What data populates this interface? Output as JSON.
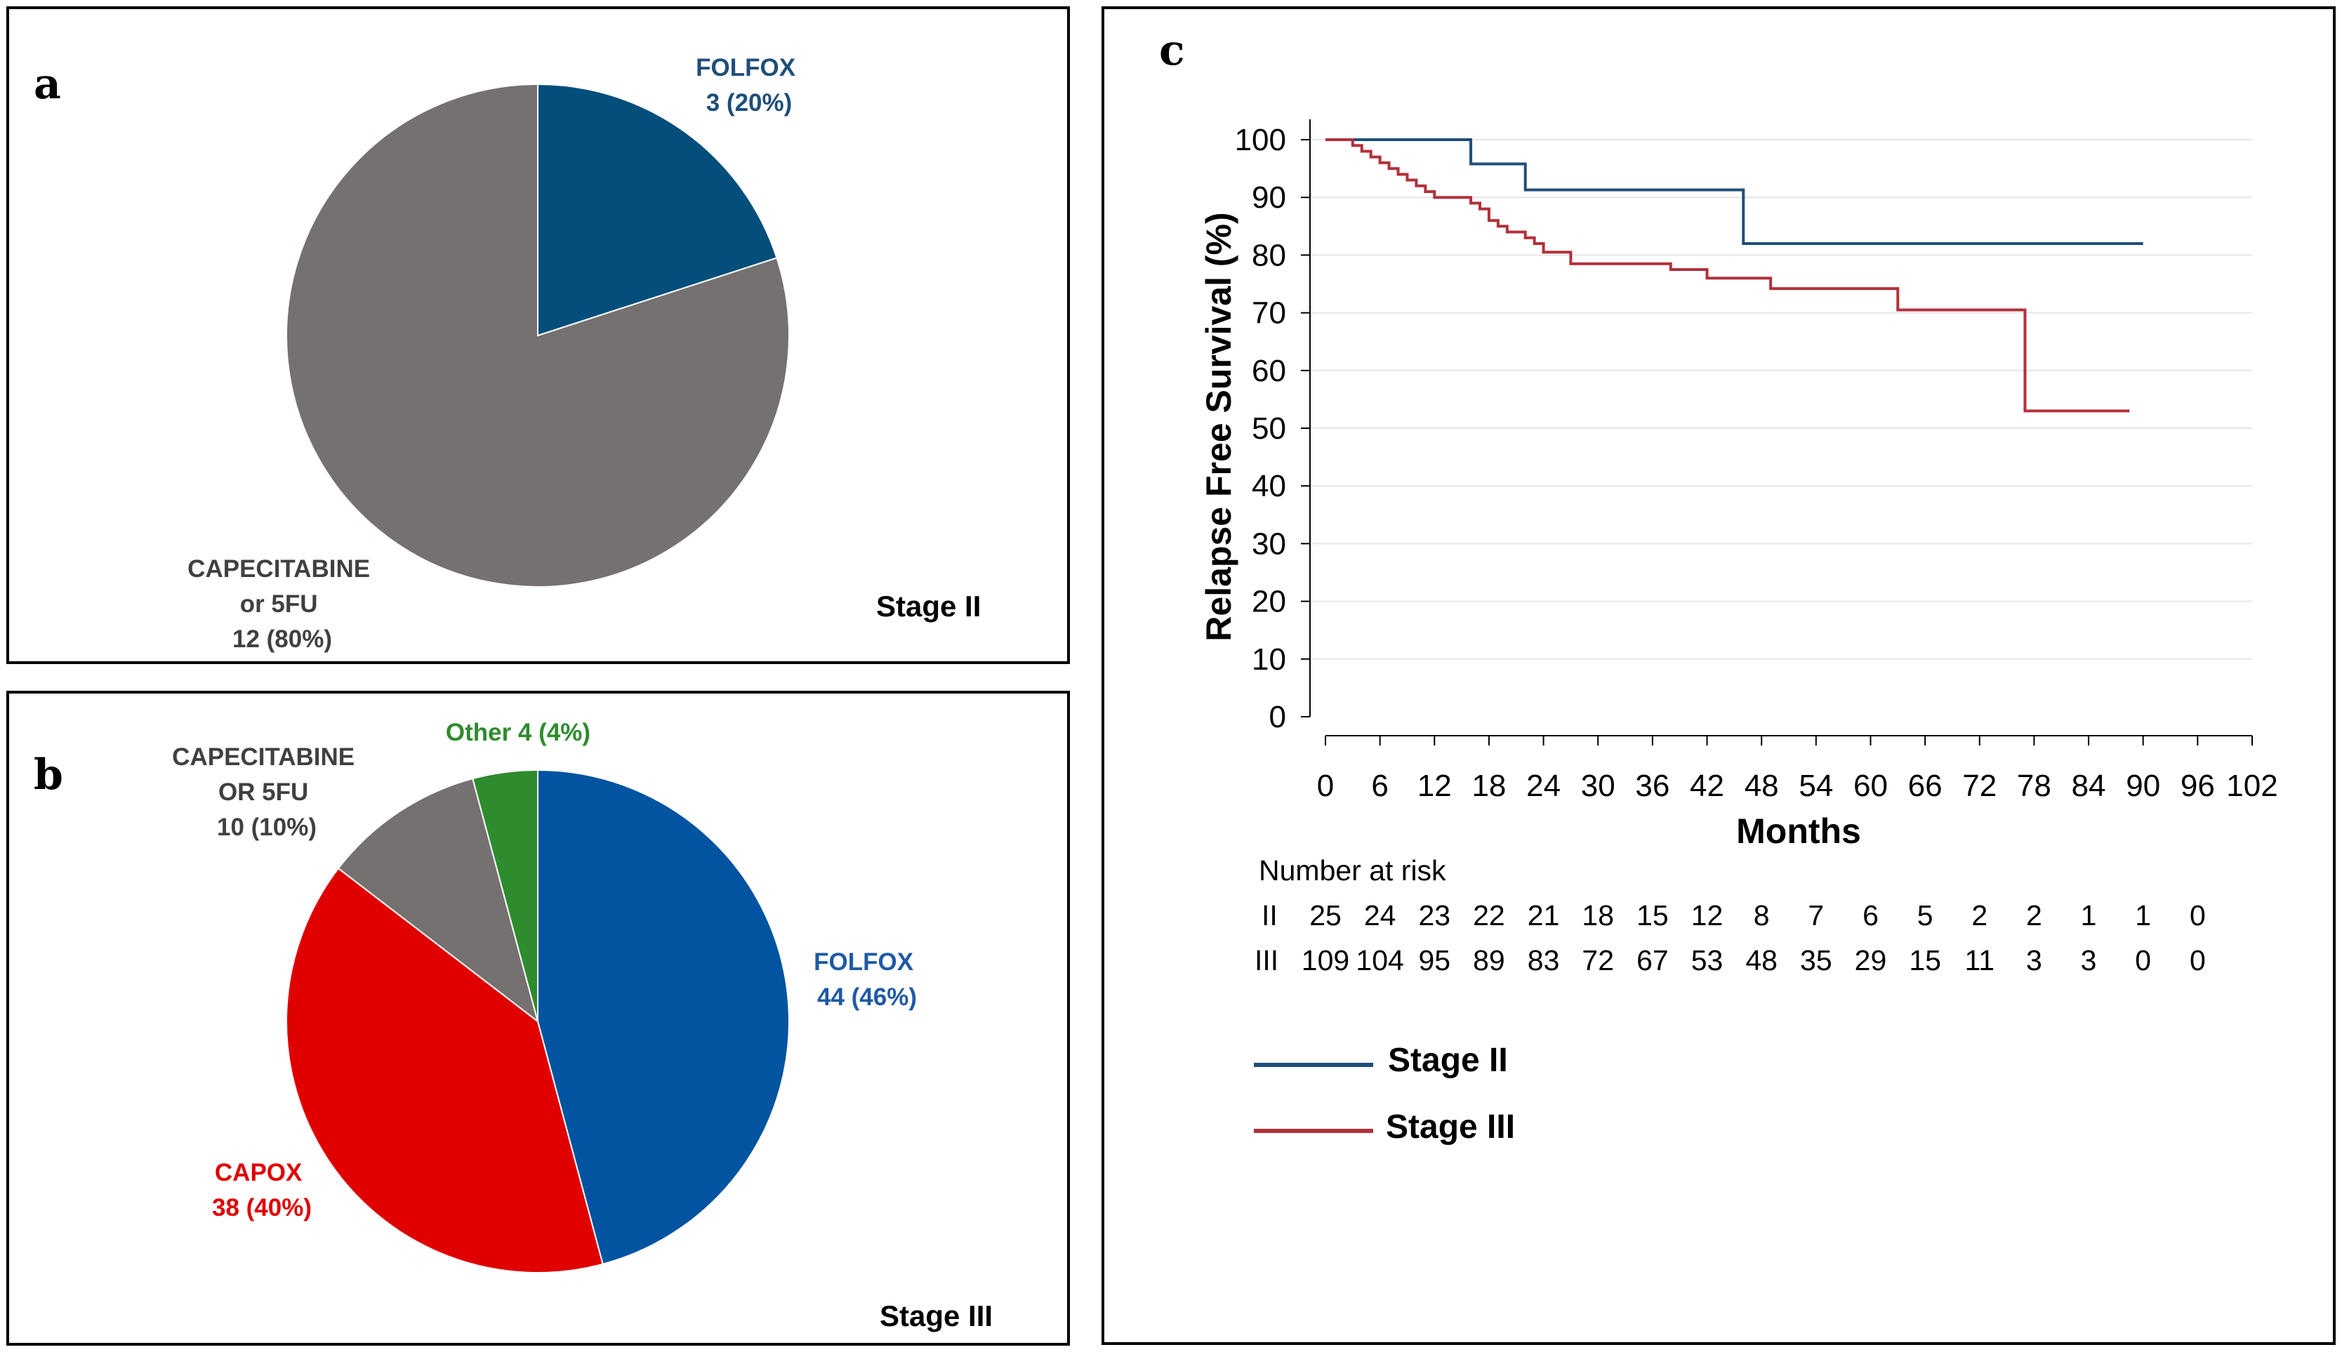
{
  "panels": {
    "a": "a",
    "b": "b",
    "c": "c"
  },
  "colors": {
    "folfox_a": "#034e7b",
    "folfox_b": "#0254a0",
    "cape": "#767171",
    "capox": "#e00000",
    "other": "#2e8b2e",
    "stage2": "#1f4e79",
    "stage3": "#b2313a",
    "folfox_text_a": "#1f4e79",
    "folfox_text_b": "#1f5aa6",
    "cape_text": "#404040",
    "capox_text": "#e00000",
    "other_text": "#2e8b2e"
  },
  "chart_data": [
    {
      "type": "pie",
      "title": "Stage II",
      "labels": [
        "FOLFOX",
        "CAPECITABINE or 5FU"
      ],
      "counts": [
        3,
        12
      ],
      "percents": [
        20,
        80
      ],
      "label_lines": [
        [
          "FOLFOX",
          "3 (20%)"
        ],
        [
          "CAPECITABINE",
          "or 5FU",
          "12 (80%)"
        ]
      ]
    },
    {
      "type": "pie",
      "title": "Stage III",
      "labels": [
        "FOLFOX",
        "CAPOX",
        "CAPECITABINE OR 5FU",
        "Other"
      ],
      "counts": [
        44,
        38,
        10,
        4
      ],
      "percents": [
        46,
        40,
        10,
        4
      ],
      "label_lines": [
        [
          "FOLFOX",
          "44 (46%)"
        ],
        [
          "CAPOX",
          "38 (40%)"
        ],
        [
          "CAPECITABINE",
          "OR 5FU",
          "10 (10%)"
        ],
        [
          "Other 4 (4%)"
        ]
      ]
    },
    {
      "type": "line",
      "subtype": "kaplan-meier",
      "xlabel": "Months",
      "ylabel": "Relapse Free Survival (%)",
      "xlim": [
        0,
        102
      ],
      "ylim": [
        0,
        100
      ],
      "xticks": [
        0,
        6,
        12,
        18,
        24,
        30,
        36,
        42,
        48,
        54,
        60,
        66,
        72,
        78,
        84,
        90,
        96,
        102
      ],
      "yticks": [
        0,
        10,
        20,
        30,
        40,
        50,
        60,
        70,
        80,
        90,
        100
      ],
      "grid": "horizontal",
      "series": [
        {
          "name": "Stage II",
          "steps": [
            [
              0,
              100
            ],
            [
              16,
              100
            ],
            [
              16,
              95.8
            ],
            [
              22,
              95.8
            ],
            [
              22,
              91.3
            ],
            [
              46,
              91.3
            ],
            [
              46,
              82
            ],
            [
              90,
              82
            ]
          ]
        },
        {
          "name": "Stage III",
          "steps": [
            [
              0,
              100
            ],
            [
              3,
              100
            ],
            [
              3,
              99
            ],
            [
              4,
              99
            ],
            [
              4,
              98
            ],
            [
              5,
              98
            ],
            [
              5,
              97
            ],
            [
              6,
              97
            ],
            [
              6,
              96
            ],
            [
              7,
              96
            ],
            [
              7,
              95
            ],
            [
              8,
              95
            ],
            [
              8,
              94
            ],
            [
              9,
              94
            ],
            [
              9,
              93
            ],
            [
              10,
              93
            ],
            [
              10,
              92
            ],
            [
              11,
              92
            ],
            [
              11,
              91
            ],
            [
              12,
              91
            ],
            [
              12,
              90
            ],
            [
              16,
              90
            ],
            [
              16,
              89
            ],
            [
              17,
              89
            ],
            [
              17,
              88
            ],
            [
              18,
              88
            ],
            [
              18,
              86
            ],
            [
              19,
              86
            ],
            [
              19,
              85
            ],
            [
              20,
              85
            ],
            [
              20,
              84
            ],
            [
              22,
              84
            ],
            [
              22,
              83
            ],
            [
              23,
              83
            ],
            [
              23,
              82
            ],
            [
              24,
              82
            ],
            [
              24,
              80.5
            ],
            [
              27,
              80.5
            ],
            [
              27,
              78.5
            ],
            [
              38,
              78.5
            ],
            [
              38,
              77.5
            ],
            [
              42,
              77.5
            ],
            [
              42,
              76
            ],
            [
              49,
              76
            ],
            [
              49,
              74.2
            ],
            [
              63,
              74.2
            ],
            [
              63,
              70.5
            ],
            [
              77,
              70.5
            ],
            [
              77,
              53
            ],
            [
              88.5,
              53
            ]
          ]
        }
      ],
      "risk_table": {
        "title": "Number at risk",
        "rows": [
          {
            "label": "II",
            "values": [
              "25",
              "24",
              "23",
              "22",
              "21",
              "18",
              "15",
              "12",
              "8",
              "7",
              "6",
              "5",
              "2",
              "2",
              "1",
              "1",
              "0"
            ]
          },
          {
            "label": "III",
            "values": [
              "109",
              "104",
              "95",
              "89",
              "83",
              "72",
              "67",
              "53",
              "48",
              "35",
              "29",
              "15",
              "11",
              "3",
              "3",
              "0",
              "0"
            ]
          }
        ]
      },
      "legend": [
        "Stage II",
        "Stage III"
      ]
    }
  ]
}
